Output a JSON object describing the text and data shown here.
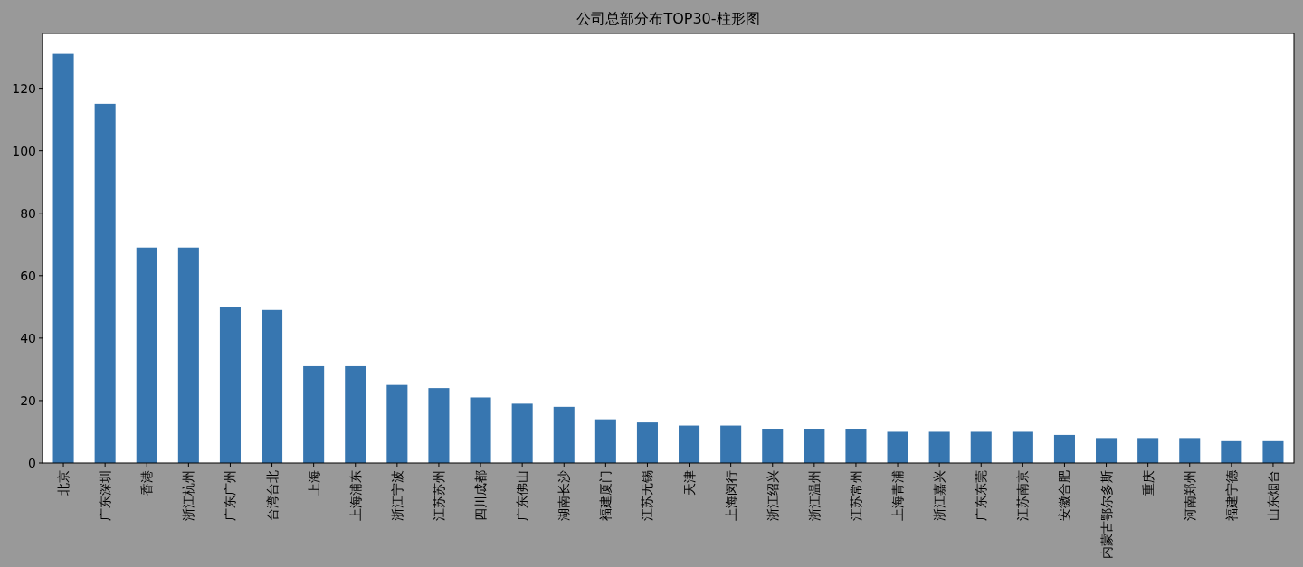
{
  "chart_data": {
    "type": "bar",
    "title": "公司总部分布TOP30-柱形图",
    "categories": [
      "北京",
      "广东深圳",
      "香港",
      "浙江杭州",
      "广东广州",
      "台湾台北",
      "上海",
      "上海浦东",
      "浙江宁波",
      "江苏苏州",
      "四川成都",
      "广东佛山",
      "湖南长沙",
      "福建厦门",
      "江苏无锡",
      "天津",
      "上海闵行",
      "浙江绍兴",
      "浙江温州",
      "江苏常州",
      "上海青浦",
      "浙江嘉兴",
      "广东东莞",
      "江苏南京",
      "安徽合肥",
      "内蒙古鄂尔多斯",
      "重庆",
      "河南郑州",
      "福建宁德",
      "山东烟台"
    ],
    "values": [
      131,
      115,
      69,
      69,
      50,
      49,
      31,
      31,
      25,
      24,
      21,
      19,
      18,
      14,
      13,
      12,
      12,
      11,
      11,
      11,
      10,
      10,
      10,
      10,
      9,
      8,
      8,
      8,
      7,
      7
    ],
    "color": "#3776b0",
    "ylim": [
      0,
      137.55
    ],
    "yticks": [
      0,
      20,
      40,
      60,
      80,
      100,
      120
    ]
  }
}
